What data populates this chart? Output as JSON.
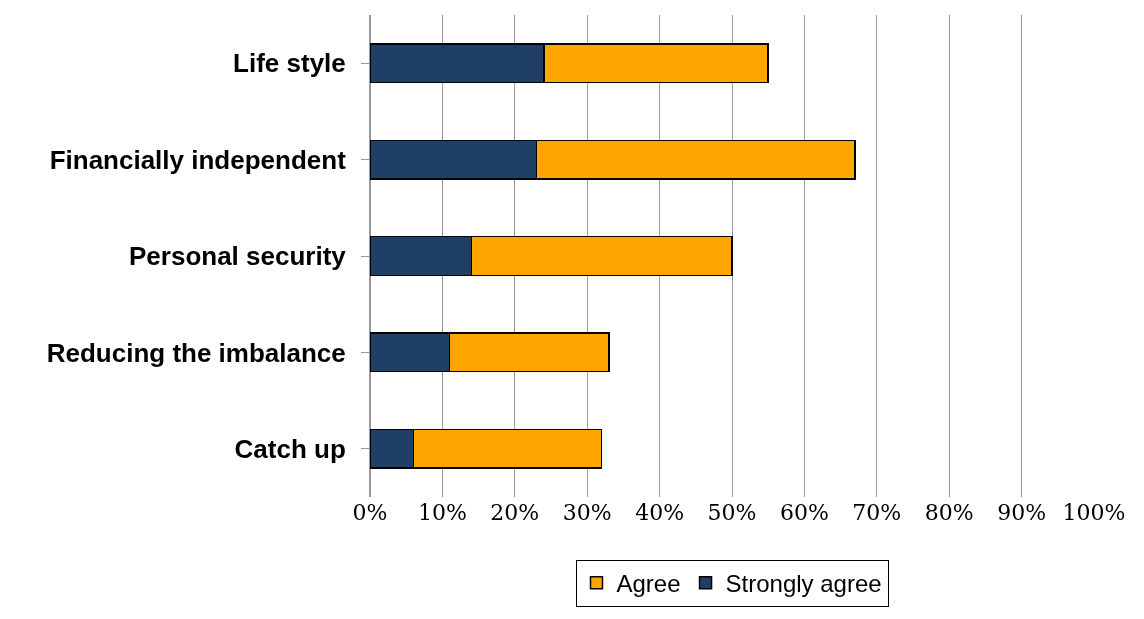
{
  "chart_data": {
    "type": "bar",
    "orientation": "horizontal",
    "stacked": true,
    "categories": [
      "Life style",
      "Financially independent",
      "Personal security",
      "Reducing the imbalance",
      "Catch up"
    ],
    "series": [
      {
        "name": "Strongly agree",
        "color": "#1f3f66",
        "values": [
          24,
          23,
          14,
          11,
          6
        ]
      },
      {
        "name": "Agree",
        "color": "#ffa500",
        "values": [
          31,
          44,
          36,
          22,
          26
        ]
      }
    ],
    "xlim": [
      0,
      100
    ],
    "xticks": [
      {
        "value": 0,
        "label": "0%"
      },
      {
        "value": 10,
        "label": "10%"
      },
      {
        "value": 20,
        "label": "20%"
      },
      {
        "value": 30,
        "label": "30%"
      },
      {
        "value": 40,
        "label": "40%"
      },
      {
        "value": 50,
        "label": "50%"
      },
      {
        "value": 60,
        "label": "60%"
      },
      {
        "value": 70,
        "label": "70%"
      },
      {
        "value": 80,
        "label": "80%"
      },
      {
        "value": 90,
        "label": "90%"
      },
      {
        "value": 100,
        "label": "100%"
      }
    ],
    "grid": "x",
    "legend": "bottom"
  }
}
